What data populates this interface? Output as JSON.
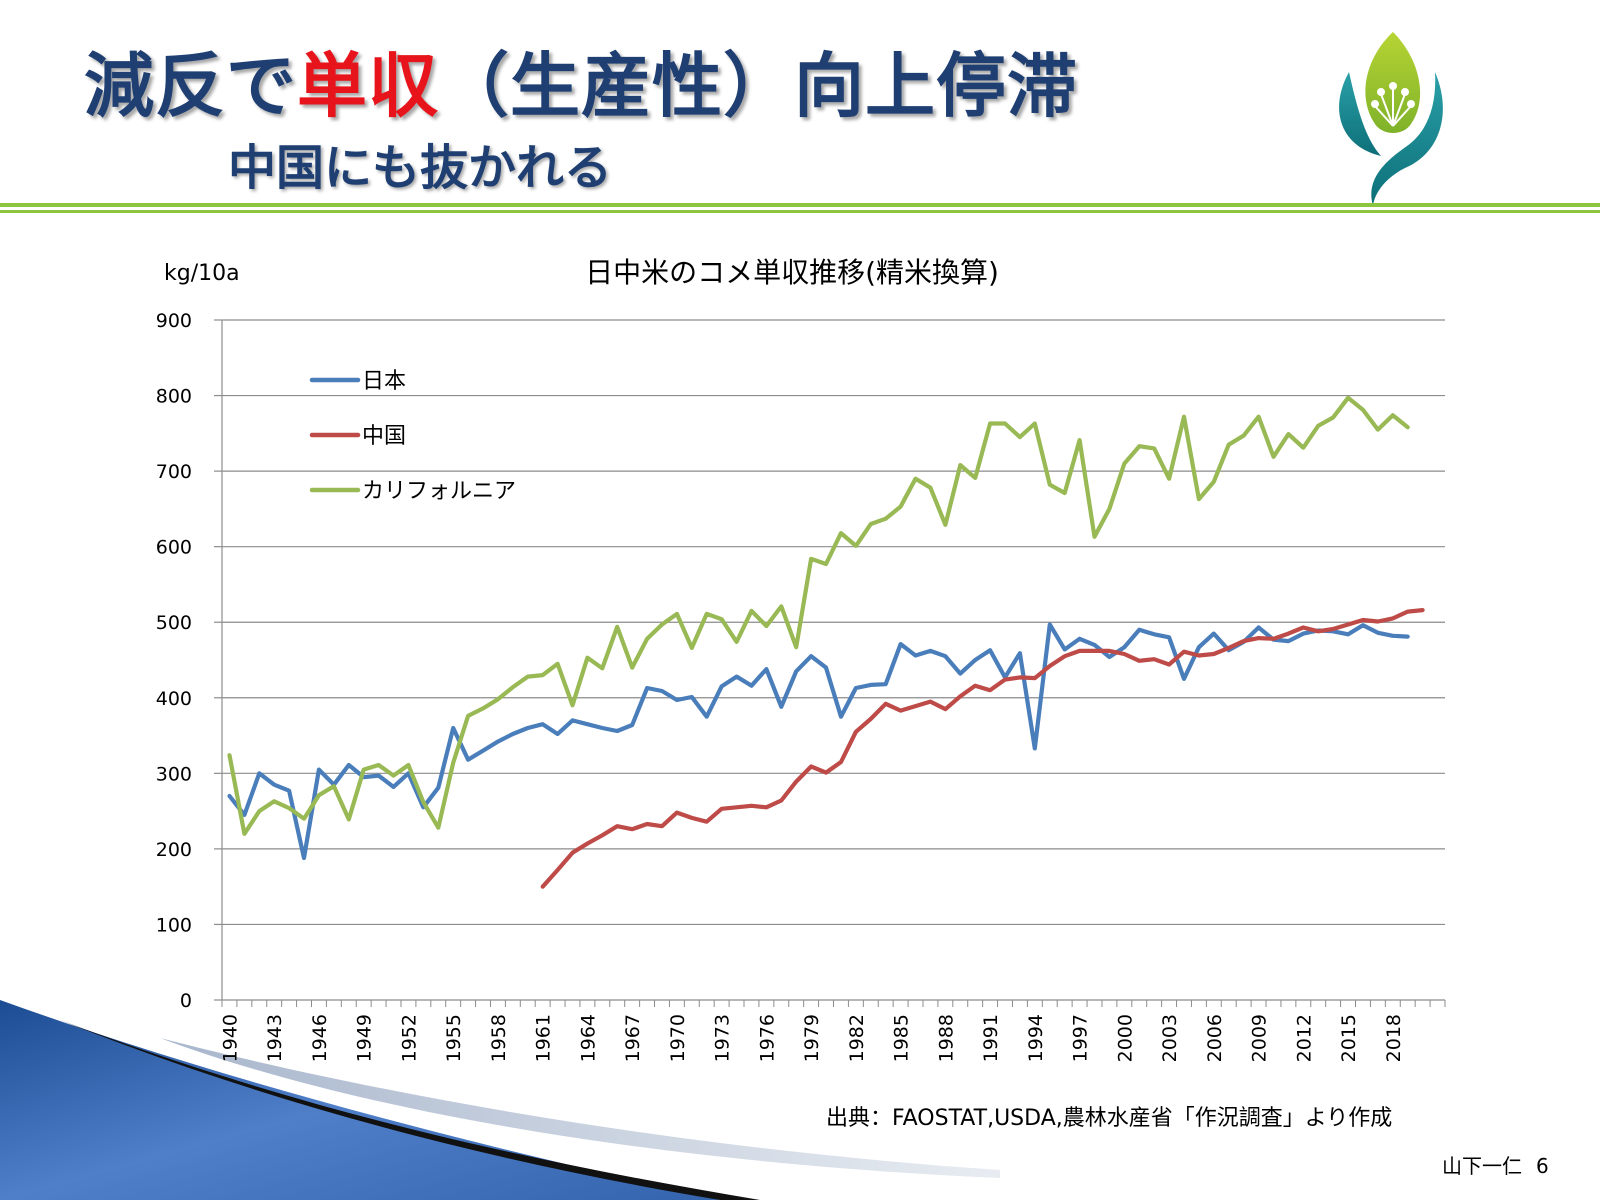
{
  "slide": {
    "title_part1": "減反で",
    "title_accent": "単収",
    "title_part2": "（生産性）向上停滞",
    "subtitle": "中国にも抜かれる",
    "source": "出典：FAOSTAT,USDA,農林水産省「作況調査」より作成",
    "author": "山下一仁",
    "page_number": "6"
  },
  "colors": {
    "title": "#1f3f73",
    "accent": "#e8141b",
    "rule": "#8cc63f",
    "japan": "#4a7ebb",
    "china": "#be4b48",
    "california": "#98b954"
  },
  "chart_data": {
    "type": "line",
    "title": "日中米のコメ単収推移(精米換算)",
    "ylabel": "kg/10a",
    "ylim": [
      0,
      900
    ],
    "yticks": [
      0,
      100,
      200,
      300,
      400,
      500,
      600,
      700,
      800,
      900
    ],
    "xlim": [
      1940,
      2019
    ],
    "xticks": [
      1940,
      1943,
      1946,
      1949,
      1952,
      1955,
      1958,
      1961,
      1964,
      1967,
      1970,
      1973,
      1976,
      1979,
      1982,
      1985,
      1988,
      1991,
      1994,
      1997,
      2000,
      2003,
      2006,
      2009,
      2012,
      2015,
      2018
    ],
    "grid": true,
    "legend_position": "top-left",
    "series": [
      {
        "name": "日本",
        "color": "#4a7ebb",
        "x_start": 1940,
        "values": [
          270,
          245,
          300,
          285,
          277,
          188,
          305,
          285,
          311,
          295,
          297,
          282,
          300,
          255,
          281,
          360,
          318,
          330,
          342,
          352,
          360,
          365,
          352,
          370,
          365,
          360,
          356,
          364,
          413,
          409,
          397,
          401,
          375,
          415,
          428,
          416,
          438,
          388,
          435,
          455,
          440,
          375,
          413,
          417,
          418,
          471,
          456,
          462,
          455,
          432,
          450,
          463,
          427,
          459,
          333,
          497,
          464,
          478,
          470,
          454,
          467,
          490,
          484,
          480,
          425,
          467,
          485,
          463,
          474,
          493,
          477,
          475,
          485,
          489,
          488,
          484,
          496,
          486,
          482,
          481
        ]
      },
      {
        "name": "中国",
        "color": "#be4b48",
        "x_start": 1961,
        "values": [
          150,
          172,
          195,
          207,
          218,
          230,
          226,
          233,
          230,
          248,
          241,
          236,
          253,
          255,
          257,
          255,
          264,
          289,
          309,
          301,
          315,
          355,
          372,
          392,
          383,
          389,
          395,
          385,
          402,
          416,
          410,
          424,
          427,
          426,
          442,
          455,
          462,
          462,
          462,
          458,
          449,
          451,
          444,
          461,
          456,
          458,
          466,
          475,
          479,
          478,
          485,
          493,
          488,
          491,
          497,
          503,
          501,
          505,
          514,
          516
        ]
      },
      {
        "name": "カリフォルニア",
        "color": "#98b954",
        "x_start": 1940,
        "values": [
          324,
          220,
          250,
          263,
          254,
          240,
          271,
          283,
          239,
          305,
          311,
          297,
          311,
          262,
          228,
          314,
          376,
          386,
          398,
          414,
          428,
          430,
          445,
          390,
          453,
          439,
          494,
          440,
          478,
          497,
          511,
          466,
          511,
          504,
          474,
          515,
          495,
          521,
          467,
          584,
          577,
          618,
          601,
          630,
          637,
          653,
          690,
          678,
          629,
          708,
          691,
          763,
          763,
          745,
          763,
          682,
          671,
          741,
          613,
          650,
          710,
          733,
          730,
          690,
          772,
          663,
          686,
          735,
          747,
          772,
          719,
          749,
          731,
          760,
          771,
          797,
          781,
          755,
          774,
          758
        ]
      }
    ]
  }
}
